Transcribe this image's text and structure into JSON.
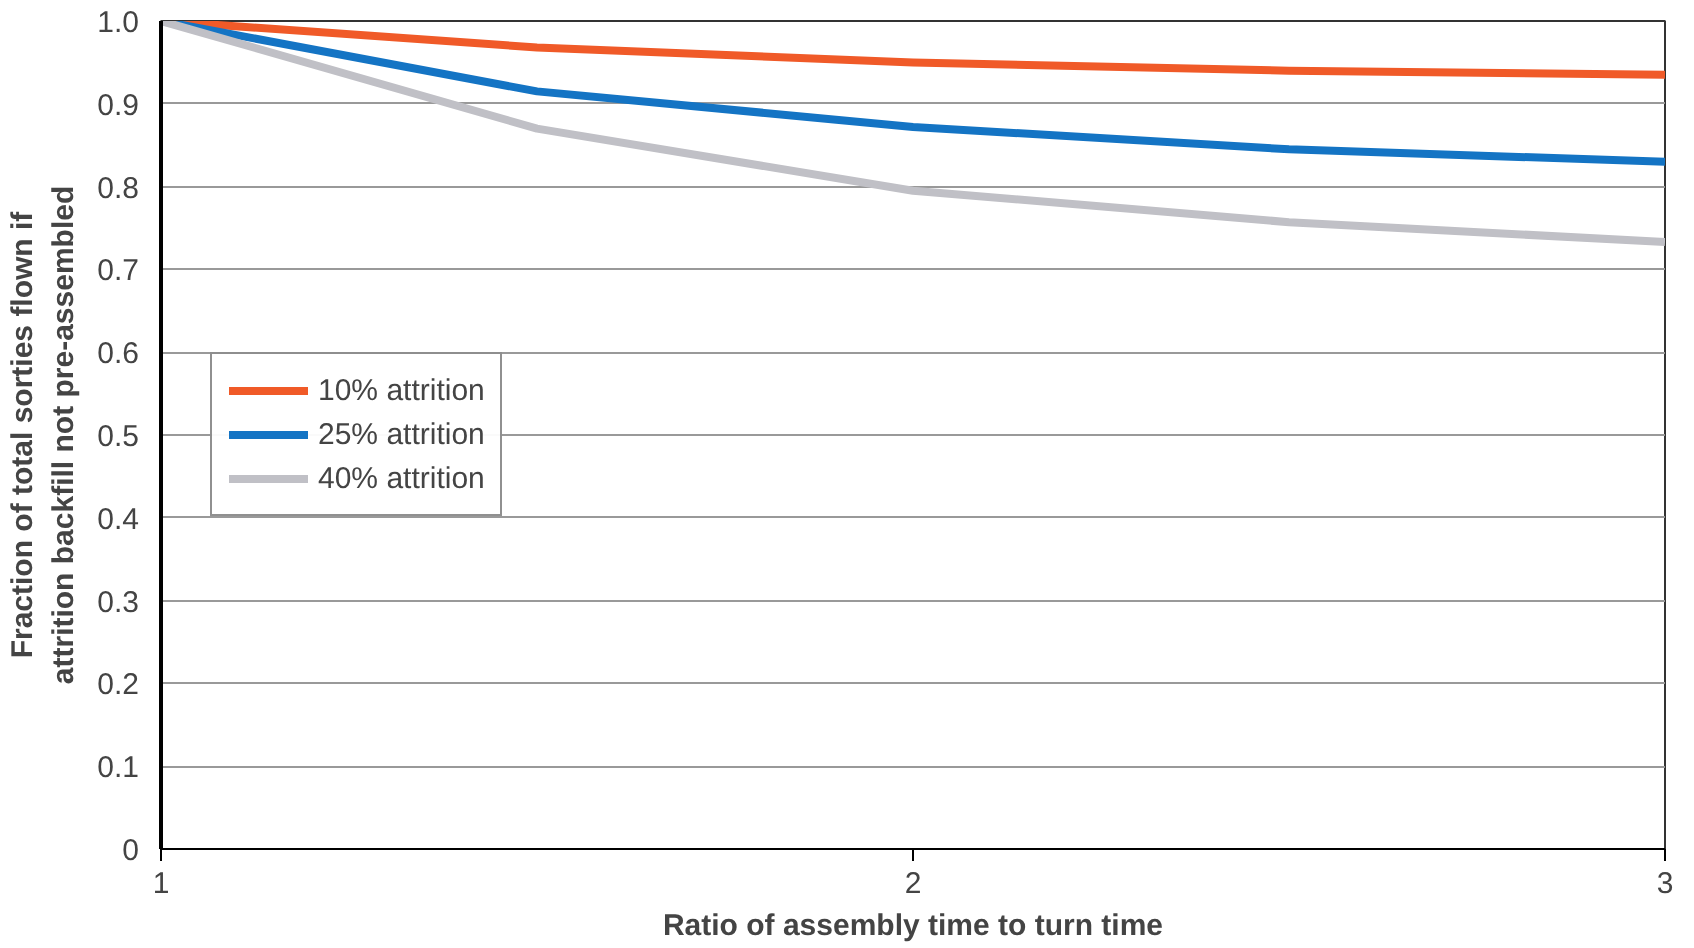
{
  "chart_data": {
    "type": "line",
    "xlabel": "Ratio of assembly time to turn time",
    "ylabel": "Fraction of total sorties flown if\nattrition backfill not pre-assembled",
    "x": [
      1,
      1.5,
      2,
      2.5,
      3
    ],
    "series": [
      {
        "name": "10% attrition",
        "color": "#f05a28",
        "values": [
          1.0,
          0.968,
          0.95,
          0.94,
          0.935
        ]
      },
      {
        "name": "25% attrition",
        "color": "#1474c4",
        "values": [
          1.0,
          0.915,
          0.872,
          0.845,
          0.83
        ]
      },
      {
        "name": "40% attrition",
        "color": "#c0c0c6",
        "values": [
          1.0,
          0.87,
          0.795,
          0.757,
          0.733
        ]
      }
    ],
    "xlim": [
      1,
      3
    ],
    "xticks": [
      1,
      2,
      3
    ],
    "ylim": [
      0,
      1.0
    ],
    "yticks": [
      0,
      0.1,
      0.2,
      0.3,
      0.4,
      0.5,
      0.6,
      0.7,
      0.8,
      0.9,
      {
        "value": 1.0,
        "label": "1.0"
      }
    ],
    "grid": "y",
    "legend": "left",
    "marker": "none",
    "line_style": "solid"
  }
}
